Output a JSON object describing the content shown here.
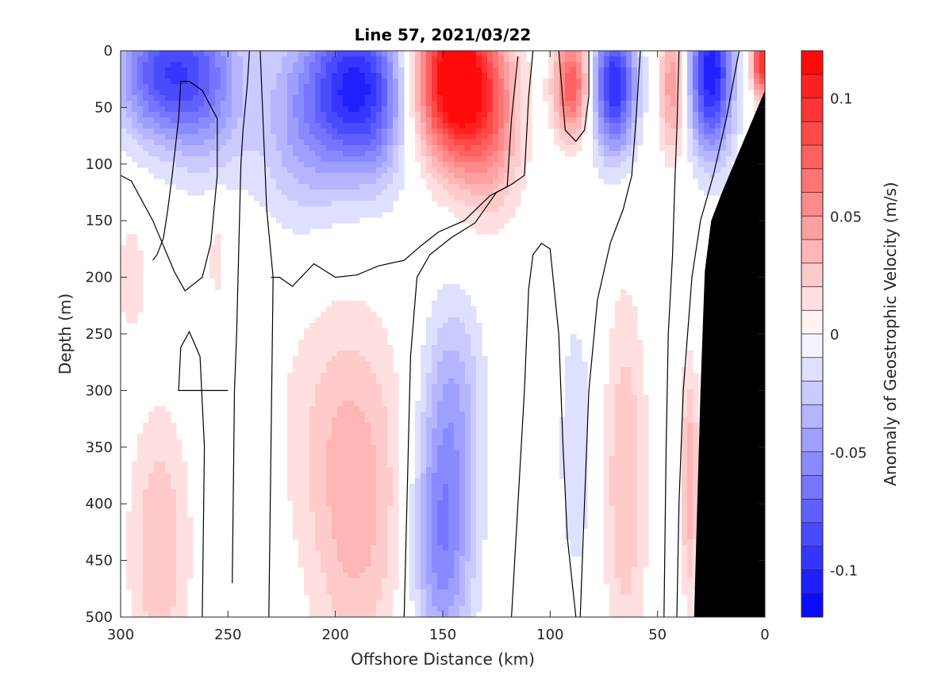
{
  "chart_data": {
    "type": "heatmap",
    "title": "Line 57, 2021/03/22",
    "xlabel": "Offshore Distance (km)",
    "ylabel": "Depth (m)",
    "colorbar_label": "Anomaly of Geostrophic Velocity (m/s)",
    "xlim": [
      300,
      0
    ],
    "ylim": [
      0,
      500
    ],
    "x_ticks": [
      "300",
      "250",
      "200",
      "150",
      "100",
      "50",
      "0"
    ],
    "x_tick_values": [
      300,
      250,
      200,
      150,
      100,
      50,
      0
    ],
    "y_ticks": [
      "0",
      "50",
      "100",
      "150",
      "200",
      "250",
      "300",
      "350",
      "400",
      "450",
      "500"
    ],
    "y_tick_values": [
      0,
      50,
      100,
      150,
      200,
      250,
      300,
      350,
      400,
      450,
      500
    ],
    "colorbar_range": [
      -0.12,
      0.12
    ],
    "colorbar_ticks": [
      "0.1",
      "0.05",
      "0",
      "-0.05",
      "-0.1"
    ],
    "colorbar_tick_values": [
      0.1,
      0.05,
      0,
      -0.05,
      -0.1
    ],
    "colorbar_levels": 24,
    "colormap": {
      "negative": "#0000ff",
      "zero": "#ffffff",
      "positive": "#ff0000"
    },
    "bathymetry_color": "#000000",
    "contour_level": 0,
    "grid": false,
    "features": [
      {
        "x": 280,
        "depth": 20,
        "value": -0.08,
        "sx": 22,
        "sz": 60
      },
      {
        "x": 258,
        "depth": 30,
        "value": -0.04,
        "sx": 18,
        "sz": 80
      },
      {
        "x": 195,
        "depth": 30,
        "value": -0.07,
        "sx": 18,
        "sz": 70
      },
      {
        "x": 180,
        "depth": 40,
        "value": -0.05,
        "sx": 15,
        "sz": 80
      },
      {
        "x": 215,
        "depth": 60,
        "value": -0.04,
        "sx": 22,
        "sz": 90
      },
      {
        "x": 145,
        "depth": 25,
        "value": 0.13,
        "sx": 17,
        "sz": 70
      },
      {
        "x": 128,
        "depth": 60,
        "value": 0.05,
        "sx": 15,
        "sz": 80
      },
      {
        "x": 90,
        "depth": 30,
        "value": 0.08,
        "sx": 8,
        "sz": 45
      },
      {
        "x": 70,
        "depth": 30,
        "value": -0.1,
        "sx": 10,
        "sz": 60
      },
      {
        "x": 43,
        "depth": 30,
        "value": 0.05,
        "sx": 6,
        "sz": 60
      },
      {
        "x": 25,
        "depth": 20,
        "value": -0.11,
        "sx": 10,
        "sz": 70
      },
      {
        "x": 2,
        "depth": 10,
        "value": 0.1,
        "sx": 4,
        "sz": 30
      },
      {
        "x": 150,
        "depth": 430,
        "value": -0.06,
        "sx": 14,
        "sz": 110
      },
      {
        "x": 145,
        "depth": 300,
        "value": -0.03,
        "sx": 14,
        "sz": 90
      },
      {
        "x": 282,
        "depth": 440,
        "value": 0.03,
        "sx": 14,
        "sz": 120
      },
      {
        "x": 190,
        "depth": 420,
        "value": 0.03,
        "sx": 22,
        "sz": 140
      },
      {
        "x": 200,
        "depth": 320,
        "value": 0.015,
        "sx": 30,
        "sz": 120
      },
      {
        "x": 65,
        "depth": 380,
        "value": 0.03,
        "sx": 10,
        "sz": 160
      },
      {
        "x": 88,
        "depth": 350,
        "value": -0.02,
        "sx": 8,
        "sz": 120
      },
      {
        "x": 295,
        "depth": 200,
        "value": 0.015,
        "sx": 8,
        "sz": 60
      },
      {
        "x": 35,
        "depth": 380,
        "value": 0.04,
        "sx": 4,
        "sz": 100
      },
      {
        "x": 255,
        "depth": 180,
        "value": 0.015,
        "sx": 5,
        "sz": 50
      }
    ],
    "bathymetry": [
      [
        0,
        35
      ],
      [
        10,
        80
      ],
      [
        20,
        125
      ],
      [
        25,
        150
      ],
      [
        28,
        195
      ],
      [
        30,
        300
      ],
      [
        33,
        500
      ]
    ],
    "contours": [
      [
        [
          300,
          110
        ],
        [
          295,
          115
        ],
        [
          285,
          150
        ],
        [
          275,
          195
        ],
        [
          270,
          212
        ],
        [
          262,
          200
        ],
        [
          258,
          170
        ],
        [
          255,
          110
        ],
        [
          255,
          60
        ],
        [
          262,
          35
        ],
        [
          268,
          27
        ],
        [
          272,
          27
        ],
        [
          273,
          60
        ],
        [
          276,
          110
        ],
        [
          278,
          140
        ],
        [
          280,
          165
        ],
        [
          282,
          175
        ],
        [
          283,
          180
        ],
        [
          285,
          185
        ]
      ],
      [
        [
          262,
          500
        ],
        [
          261,
          350
        ],
        [
          263,
          270
        ],
        [
          268,
          248
        ],
        [
          272,
          262
        ],
        [
          273,
          300
        ],
        [
          250,
          300
        ]
      ],
      [
        [
          248,
          470
        ],
        [
          247,
          300
        ],
        [
          246,
          250
        ],
        [
          244,
          100
        ],
        [
          243,
          70
        ],
        [
          241,
          30
        ],
        [
          240,
          0
        ]
      ],
      [
        [
          235,
          0
        ],
        [
          232,
          140
        ],
        [
          229,
          200
        ],
        [
          231,
          500
        ]
      ],
      [
        [
          230,
          200
        ],
        [
          226,
          200
        ],
        [
          220,
          208
        ],
        [
          210,
          188
        ],
        [
          200,
          200
        ],
        [
          190,
          198
        ],
        [
          180,
          190
        ],
        [
          168,
          185
        ],
        [
          160,
          172
        ],
        [
          152,
          160
        ],
        [
          140,
          150
        ],
        [
          128,
          128
        ],
        [
          120,
          120
        ],
        [
          118,
          60
        ],
        [
          115,
          5
        ]
      ],
      [
        [
          168,
          500
        ],
        [
          165,
          270
        ],
        [
          162,
          200
        ],
        [
          156,
          180
        ],
        [
          146,
          165
        ],
        [
          135,
          152
        ],
        [
          125,
          125
        ],
        [
          118,
          118
        ],
        [
          112,
          110
        ],
        [
          110,
          40
        ],
        [
          108,
          0
        ]
      ],
      [
        [
          118,
          500
        ],
        [
          112,
          300
        ],
        [
          110,
          210
        ],
        [
          108,
          180
        ],
        [
          104,
          170
        ],
        [
          100,
          175
        ],
        [
          96,
          250
        ],
        [
          94,
          350
        ],
        [
          92,
          430
        ],
        [
          88,
          500
        ]
      ],
      [
        [
          86,
          500
        ],
        [
          84,
          400
        ],
        [
          82,
          300
        ],
        [
          78,
          220
        ],
        [
          72,
          170
        ],
        [
          70,
          160
        ],
        [
          66,
          140
        ],
        [
          62,
          110
        ],
        [
          60,
          60
        ],
        [
          58,
          0
        ]
      ],
      [
        [
          96,
          0
        ],
        [
          93,
          70
        ],
        [
          88,
          80
        ],
        [
          84,
          70
        ],
        [
          82,
          40
        ],
        [
          82,
          0
        ]
      ],
      [
        [
          47,
          500
        ],
        [
          46,
          350
        ],
        [
          45,
          250
        ],
        [
          43,
          180
        ],
        [
          42,
          120
        ],
        [
          41,
          70
        ],
        [
          40,
          0
        ]
      ],
      [
        [
          41,
          500
        ],
        [
          40,
          400
        ],
        [
          38,
          300
        ],
        [
          34,
          200
        ],
        [
          30,
          150
        ],
        [
          24,
          110
        ],
        [
          18,
          60
        ],
        [
          12,
          0
        ]
      ]
    ]
  }
}
